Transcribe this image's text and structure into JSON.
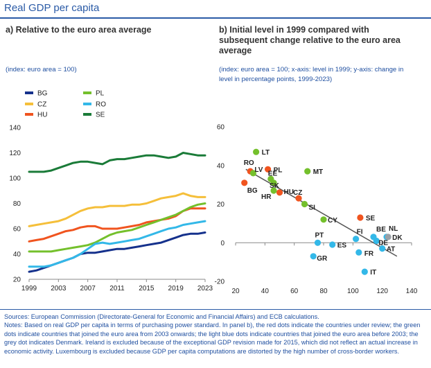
{
  "title": "Real GDP per capita",
  "panel_a": {
    "title": "a) Relative to the euro area average",
    "note": "(index: euro area = 100)"
  },
  "panel_b": {
    "title_line1": "b) Initial level in 1999 compared with",
    "title_line2": "subsequent change relative to the euro area",
    "title_line3": "average",
    "note_line1": "(index: euro area = 100; x-axis: level in 1999; y-axis: change in",
    "note_line2": "level in percentage points, 1999-2023)"
  },
  "colors": {
    "BG": "#15318c",
    "CZ": "#f5bf3a",
    "HU": "#f0541f",
    "PL": "#74c02c",
    "RO": "#33b8e8",
    "SE": "#1a7b38",
    "review": "#f0541f",
    "joined2003": "#74c02c",
    "before2003": "#33b8e8",
    "denmark": "#9aa0a6",
    "fit": "#555555"
  },
  "chart_data": [
    {
      "type": "line",
      "x": [
        1999,
        2000,
        2001,
        2002,
        2003,
        2004,
        2005,
        2006,
        2007,
        2008,
        2009,
        2010,
        2011,
        2012,
        2013,
        2014,
        2015,
        2016,
        2017,
        2018,
        2019,
        2020,
        2021,
        2022,
        2023
      ],
      "ylim": [
        20,
        140
      ],
      "yticks": [
        20,
        40,
        60,
        80,
        100,
        120,
        140
      ],
      "xticks": [
        1999,
        2003,
        2007,
        2011,
        2015,
        2019,
        2023
      ],
      "legend_position": "top",
      "series": [
        {
          "name": "BG",
          "values": [
            26,
            27,
            29,
            31,
            33,
            35,
            37,
            40,
            41,
            41,
            42,
            43,
            44,
            44,
            45,
            46,
            47,
            48,
            49,
            51,
            53,
            55,
            56,
            56,
            57
          ]
        },
        {
          "name": "CZ",
          "values": [
            62,
            63,
            64,
            65,
            66,
            68,
            71,
            74,
            76,
            77,
            77,
            78,
            78,
            78,
            79,
            79,
            80,
            82,
            84,
            85,
            86,
            88,
            86,
            85,
            85
          ]
        },
        {
          "name": "HU",
          "values": [
            50,
            51,
            52,
            54,
            56,
            58,
            59,
            61,
            62,
            62,
            60,
            60,
            60,
            61,
            62,
            63,
            65,
            66,
            67,
            68,
            70,
            74,
            76,
            76,
            76
          ]
        },
        {
          "name": "PL",
          "values": [
            42,
            42,
            42,
            42,
            43,
            44,
            45,
            46,
            47,
            49,
            52,
            55,
            57,
            58,
            59,
            61,
            63,
            65,
            67,
            69,
            71,
            74,
            77,
            79,
            80
          ]
        },
        {
          "name": "RO",
          "values": [
            30,
            30,
            30,
            31,
            33,
            35,
            37,
            40,
            44,
            48,
            49,
            48,
            49,
            50,
            51,
            52,
            54,
            56,
            58,
            60,
            61,
            63,
            64,
            65,
            66
          ]
        },
        {
          "name": "SE",
          "values": [
            105,
            105,
            105,
            106,
            108,
            110,
            112,
            113,
            113,
            112,
            111,
            114,
            115,
            115,
            116,
            117,
            118,
            118,
            117,
            116,
            117,
            120,
            119,
            118,
            118
          ]
        }
      ]
    },
    {
      "type": "scatter",
      "xlim": [
        20,
        140
      ],
      "ylim": [
        -20,
        60
      ],
      "xticks": [
        20,
        40,
        60,
        80,
        100,
        120,
        140
      ],
      "yticks": [
        -20,
        0,
        20,
        40,
        60
      ],
      "points": [
        {
          "label": "BG",
          "x": 26,
          "y": 31,
          "group": "review"
        },
        {
          "label": "RO",
          "x": 30,
          "y": 37,
          "group": "review"
        },
        {
          "label": "PL",
          "x": 42,
          "y": 38,
          "group": "review"
        },
        {
          "label": "HU",
          "x": 50,
          "y": 26,
          "group": "review"
        },
        {
          "label": "CZ",
          "x": 63,
          "y": 23,
          "group": "review"
        },
        {
          "label": "SE",
          "x": 105,
          "y": 13,
          "group": "review"
        },
        {
          "label": "LT",
          "x": 34,
          "y": 47,
          "group": "joined2003"
        },
        {
          "label": "LV",
          "x": 32,
          "y": 36,
          "group": "joined2003"
        },
        {
          "label": "EE",
          "x": 44,
          "y": 33,
          "group": "joined2003"
        },
        {
          "label": "SK",
          "x": 46,
          "y": 31,
          "group": "joined2003"
        },
        {
          "label": "HR",
          "x": 46,
          "y": 27,
          "group": "joined2003"
        },
        {
          "label": "MT",
          "x": 69,
          "y": 37,
          "group": "joined2003"
        },
        {
          "label": "SI",
          "x": 67,
          "y": 20,
          "group": "joined2003"
        },
        {
          "label": "CY",
          "x": 80,
          "y": 12,
          "group": "joined2003"
        },
        {
          "label": "PT",
          "x": 76,
          "y": 0,
          "group": "before2003"
        },
        {
          "label": "ES",
          "x": 86,
          "y": -1,
          "group": "before2003"
        },
        {
          "label": "GR",
          "x": 73,
          "y": -7,
          "group": "before2003"
        },
        {
          "label": "FI",
          "x": 102,
          "y": 2,
          "group": "before2003"
        },
        {
          "label": "BE",
          "x": 114,
          "y": 3,
          "group": "before2003"
        },
        {
          "label": "DE",
          "x": 116,
          "y": 1,
          "group": "before2003"
        },
        {
          "label": "FR",
          "x": 104,
          "y": -5,
          "group": "before2003"
        },
        {
          "label": "IT",
          "x": 108,
          "y": -15,
          "group": "before2003"
        },
        {
          "label": "AT",
          "x": 120,
          "y": -3,
          "group": "before2003"
        },
        {
          "label": "NL",
          "x": 123,
          "y": 3,
          "group": "before2003"
        },
        {
          "label": "DK",
          "x": 124,
          "y": 3,
          "group": "denmark"
        }
      ],
      "fit_line": {
        "x": [
          27,
          130
        ],
        "y": [
          38,
          -7
        ]
      }
    }
  ],
  "footer": {
    "sources": "Sources: European Commission (Directorate-General for Economic and Financial Affairs) and ECB calculations.",
    "notes": "Notes: Based on real GDP per capita in terms of purchasing power standard. In panel b), the red dots indicate the countries under review; the green dots indicate countries that joined the euro area from 2003 onwards; the light blue dots indicate countries that joined the euro area before 2003; the grey dot indicates Denmark. Ireland is excluded because of the exceptional GDP revision made for 2015, which did not reflect an actual increase in economic activity. Luxembourg is excluded because GDP per capita computations are distorted by the high number of cross-border workers."
  }
}
